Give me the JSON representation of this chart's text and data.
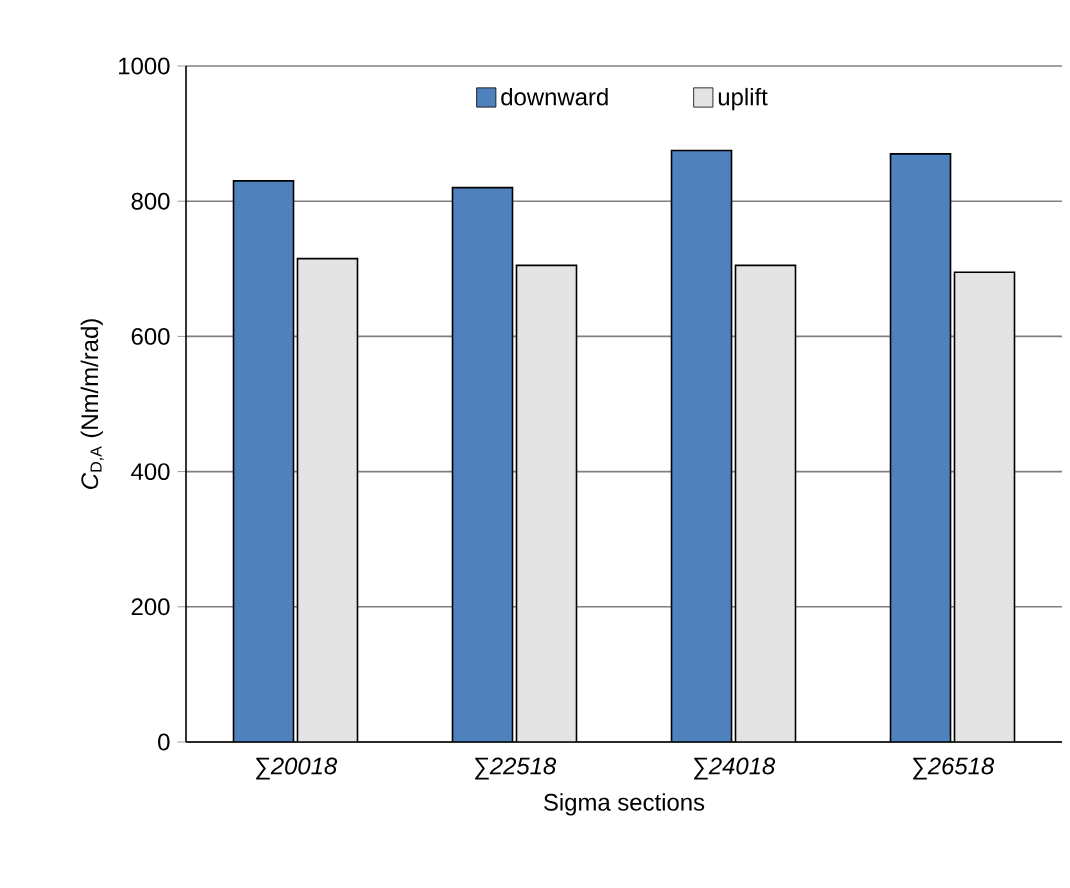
{
  "chart_data": {
    "type": "bar",
    "xlabel": "Sigma sections",
    "ylabel": "*C*$_{D,A}$ (Nm/m/rad)",
    "categories": [
      "∑20018",
      "∑22518",
      "∑24018",
      "∑26518"
    ],
    "series": [
      {
        "name": "downward",
        "color": "#4f81bd",
        "values": [
          830,
          820,
          875,
          870
        ]
      },
      {
        "name": "uplift",
        "color": "#e4e4e4",
        "values": [
          715,
          705,
          705,
          695
        ]
      }
    ],
    "ylim": [
      0,
      1000
    ],
    "yticks": [
      0,
      200,
      400,
      600,
      800,
      1000
    ],
    "grid": "y",
    "legend": "top"
  }
}
